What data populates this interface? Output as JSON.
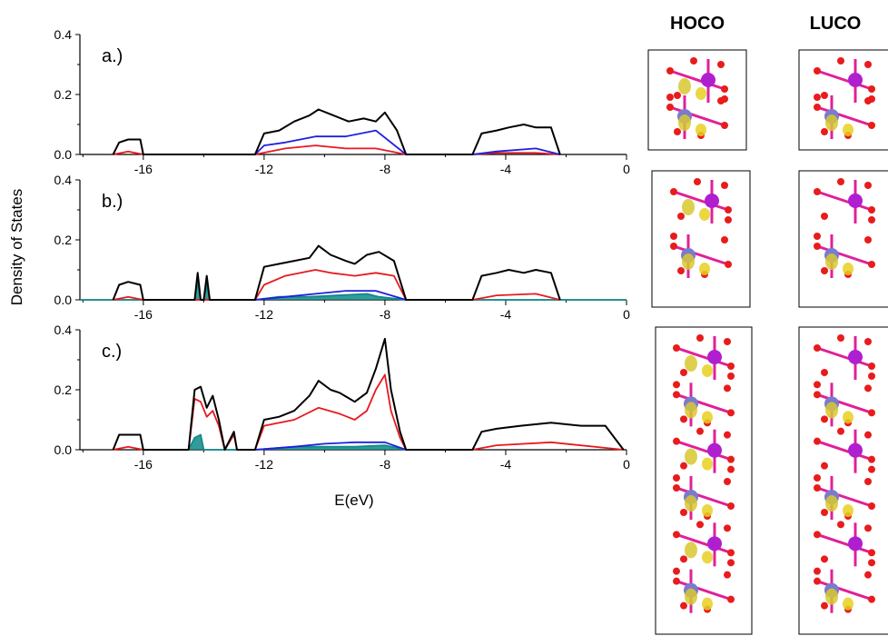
{
  "chart_data": {
    "type": "line",
    "ylabel": "Density of States",
    "xlabel": "E(eV)",
    "xlim": [
      -18.1,
      0
    ],
    "ylim": [
      0,
      0.4
    ],
    "x_ticks": [
      -16,
      -12,
      -8,
      -4,
      0
    ],
    "x_tick_labels": [
      "-16",
      "-12",
      "-8",
      "-4",
      "0"
    ],
    "y_ticks": [
      0.0,
      0.2,
      0.4
    ],
    "y_tick_labels": [
      "0.0",
      "0.2",
      "0.4"
    ],
    "series_colors": {
      "total": "#000000",
      "red": "#e8191f",
      "blue": "#1f1fe0",
      "teal": "#108a8a"
    },
    "panels": [
      {
        "label": "a.)",
        "series": [
          {
            "key": "total",
            "x": [
              -17.0,
              -16.8,
              -16.5,
              -16.1,
              -16.0,
              -12.3,
              -12.0,
              -11.5,
              -11.0,
              -10.5,
              -10.2,
              -9.7,
              -9.2,
              -8.7,
              -8.3,
              -8.0,
              -7.6,
              -7.3,
              -5.1,
              -4.8,
              -4.3,
              -3.9,
              -3.4,
              -3.0,
              -2.5,
              -2.2
            ],
            "y": [
              0,
              0.04,
              0.05,
              0.05,
              0,
              0,
              0.07,
              0.08,
              0.11,
              0.13,
              0.15,
              0.13,
              0.11,
              0.12,
              0.11,
              0.14,
              0.08,
              0,
              0,
              0.07,
              0.08,
              0.09,
              0.1,
              0.09,
              0.09,
              0
            ]
          },
          {
            "key": "blue",
            "x": [
              -12.3,
              -12.0,
              -11.3,
              -10.3,
              -9.3,
              -8.3,
              -7.3,
              -5.1,
              -4.3,
              -3.0,
              -2.2
            ],
            "y": [
              0,
              0.03,
              0.04,
              0.06,
              0.06,
              0.08,
              0,
              0,
              0.01,
              0.02,
              0
            ]
          },
          {
            "key": "red",
            "x": [
              -17.0,
              -16.5,
              -16.0,
              -12.3,
              -11.3,
              -10.3,
              -9.3,
              -8.3,
              -7.3,
              -5.1,
              -4.3,
              -3.0,
              -2.2
            ],
            "y": [
              0,
              0.01,
              0,
              0,
              0.02,
              0.03,
              0.02,
              0.02,
              0,
              0,
              0.005,
              0.005,
              0
            ]
          }
        ]
      },
      {
        "label": "b.)",
        "series": [
          {
            "key": "total",
            "x": [
              -17.0,
              -16.8,
              -16.5,
              -16.1,
              -16.0,
              -14.3,
              -14.2,
              -14.1,
              -14.0,
              -13.9,
              -13.8,
              -12.3,
              -12.0,
              -11.5,
              -11.0,
              -10.5,
              -10.2,
              -9.8,
              -9.3,
              -9.0,
              -8.6,
              -8.2,
              -7.7,
              -7.3,
              -5.1,
              -4.8,
              -4.3,
              -3.9,
              -3.4,
              -3.0,
              -2.5,
              -2.2
            ],
            "y": [
              0,
              0.05,
              0.06,
              0.05,
              0,
              0,
              0.09,
              0,
              0,
              0.08,
              0,
              0,
              0.11,
              0.12,
              0.13,
              0.14,
              0.18,
              0.15,
              0.13,
              0.12,
              0.15,
              0.16,
              0.13,
              0,
              0,
              0.08,
              0.09,
              0.1,
              0.09,
              0.1,
              0.09,
              0
            ]
          },
          {
            "key": "red",
            "x": [
              -17.0,
              -16.5,
              -16.0,
              -12.3,
              -12.0,
              -11.3,
              -10.3,
              -9.8,
              -9.0,
              -8.3,
              -7.7,
              -7.3,
              -5.1,
              -4.3,
              -3.0,
              -2.2
            ],
            "y": [
              0,
              0.01,
              0,
              0,
              0.05,
              0.08,
              0.1,
              0.09,
              0.08,
              0.09,
              0.08,
              0,
              0,
              0.015,
              0.02,
              0
            ]
          },
          {
            "key": "blue",
            "x": [
              -12.3,
              -11.3,
              -10.3,
              -9.3,
              -8.3,
              -7.3
            ],
            "y": [
              0,
              0.01,
              0.02,
              0.03,
              0.03,
              0
            ]
          },
          {
            "key": "teal",
            "x": [
              -18.1,
              -14.3,
              -14.2,
              -14.1,
              -14.0,
              -13.9,
              -13.8,
              -12.3,
              -11.5,
              -10.5,
              -8.6,
              -8.2,
              -7.3,
              0
            ],
            "y": [
              0,
              0,
              0.06,
              0,
              0,
              0.05,
              0,
              0,
              0.01,
              0.01,
              0.02,
              0.01,
              0,
              0
            ]
          }
        ]
      },
      {
        "label": "c.)",
        "series": [
          {
            "key": "total",
            "x": [
              -17.0,
              -16.8,
              -16.5,
              -16.1,
              -16.0,
              -14.5,
              -14.3,
              -14.1,
              -13.9,
              -13.7,
              -13.5,
              -13.3,
              -13.0,
              -12.9,
              -12.3,
              -12.0,
              -11.5,
              -11.0,
              -10.5,
              -10.2,
              -9.8,
              -9.5,
              -9.0,
              -8.6,
              -8.3,
              -8.0,
              -7.8,
              -7.5,
              -7.3,
              -5.1,
              -4.8,
              -4.3,
              -3.5,
              -2.5,
              -1.5,
              -0.7,
              -0.1
            ],
            "y": [
              0,
              0.05,
              0.05,
              0.05,
              0,
              0,
              0.2,
              0.21,
              0.14,
              0.18,
              0.1,
              0,
              0.06,
              0,
              0,
              0.1,
              0.11,
              0.13,
              0.18,
              0.23,
              0.2,
              0.19,
              0.16,
              0.19,
              0.27,
              0.37,
              0.2,
              0.06,
              0,
              0,
              0.06,
              0.07,
              0.08,
              0.09,
              0.08,
              0.08,
              0
            ]
          },
          {
            "key": "red",
            "x": [
              -17.0,
              -16.5,
              -16.0,
              -14.5,
              -14.3,
              -14.1,
              -13.9,
              -13.7,
              -13.5,
              -13.3,
              -13.0,
              -12.9,
              -12.3,
              -12.0,
              -11.0,
              -10.2,
              -9.5,
              -9.0,
              -8.6,
              -8.3,
              -8.0,
              -7.8,
              -7.5,
              -7.3,
              -5.1,
              -4.3,
              -2.5,
              -0.1
            ],
            "y": [
              0,
              0.01,
              0,
              0,
              0.17,
              0.16,
              0.11,
              0.13,
              0.08,
              0,
              0.05,
              0,
              0,
              0.08,
              0.1,
              0.14,
              0.12,
              0.1,
              0.13,
              0.2,
              0.25,
              0.13,
              0.04,
              0,
              0,
              0.015,
              0.025,
              0
            ]
          },
          {
            "key": "blue",
            "x": [
              -12.3,
              -11.0,
              -10.0,
              -9.0,
              -8.0,
              -7.3
            ],
            "y": [
              0,
              0.01,
              0.02,
              0.025,
              0.025,
              0
            ]
          },
          {
            "key": "teal",
            "x": [
              -14.5,
              -14.3,
              -14.1,
              -14.0,
              -12.3,
              -11.0,
              -9.0,
              -8.0,
              -7.3
            ],
            "y": [
              0,
              0.04,
              0.05,
              0,
              0,
              0.01,
              0.01,
              0.015,
              0
            ]
          }
        ]
      }
    ]
  },
  "structures": {
    "headers": [
      "HOCO",
      "LUCO"
    ]
  }
}
